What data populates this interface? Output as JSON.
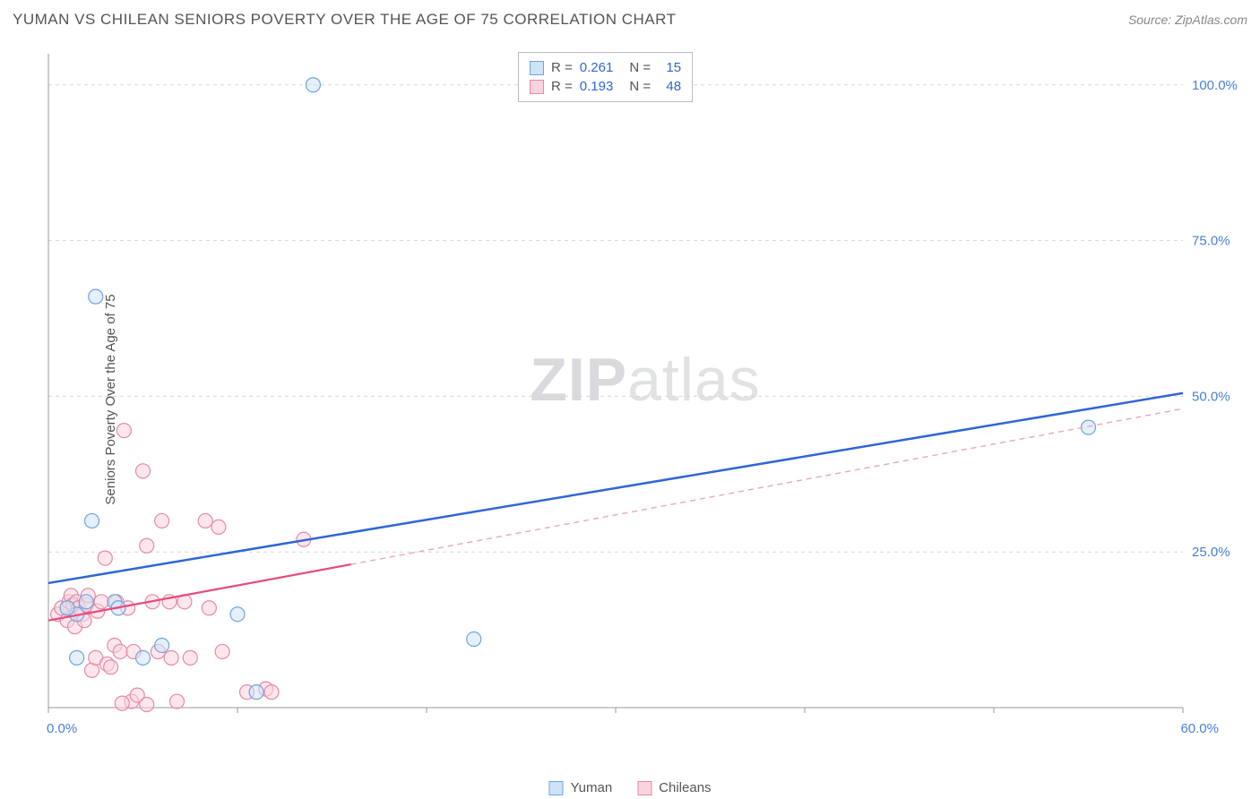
{
  "header": {
    "title": "YUMAN VS CHILEAN SENIORS POVERTY OVER THE AGE OF 75 CORRELATION CHART",
    "source_prefix": "Source: ",
    "source_name": "ZipAtlas.com"
  },
  "ylabel": "Seniors Poverty Over the Age of 75",
  "watermark": {
    "part1": "ZIP",
    "part2": "atlas"
  },
  "chart": {
    "type": "scatter",
    "xlim": [
      0,
      60
    ],
    "ylim": [
      0,
      105
    ],
    "xtick_values": [
      0,
      10,
      20,
      30,
      40,
      50,
      60
    ],
    "xtick_labels": [
      "0.0%",
      "",
      "",
      "",
      "",
      "",
      "60.0%"
    ],
    "ytick_values": [
      25,
      50,
      75,
      100
    ],
    "ytick_labels": [
      "25.0%",
      "50.0%",
      "75.0%",
      "100.0%"
    ],
    "grid_color": "#d7d7d7",
    "grid_dash": "4 4",
    "axis_color": "#999999",
    "background": "#ffffff",
    "marker_radius": 8,
    "marker_stroke_width": 1.2,
    "series": [
      {
        "name": "Yuman",
        "fill": "#cfe3f7",
        "stroke": "#6fa4dd",
        "fill_opacity": 0.55,
        "R": "0.261",
        "N": "15",
        "points": [
          [
            1.5,
            15
          ],
          [
            2.0,
            17
          ],
          [
            1.0,
            16
          ],
          [
            2.3,
            30
          ],
          [
            3.5,
            17
          ],
          [
            3.7,
            16
          ],
          [
            5.0,
            8
          ],
          [
            6.0,
            10
          ],
          [
            10.0,
            15
          ],
          [
            11.0,
            2.5
          ],
          [
            14.0,
            100
          ],
          [
            22.5,
            11
          ],
          [
            55.0,
            45
          ],
          [
            2.5,
            66
          ],
          [
            1.5,
            8
          ]
        ],
        "trend": {
          "x1": 0,
          "y1": 20,
          "x2": 60,
          "y2": 50.5,
          "color": "#2f66d6",
          "width": 2.5,
          "dash": null
        }
      },
      {
        "name": "Chileans",
        "fill": "#fbd3de",
        "stroke": "#e88aa3",
        "fill_opacity": 0.55,
        "R": "0.193",
        "N": "48",
        "points": [
          [
            0.5,
            15
          ],
          [
            0.7,
            16
          ],
          [
            1.0,
            14
          ],
          [
            1.1,
            17
          ],
          [
            1.2,
            18
          ],
          [
            1.3,
            16.5
          ],
          [
            1.4,
            13
          ],
          [
            1.5,
            17
          ],
          [
            1.6,
            16
          ],
          [
            1.8,
            15
          ],
          [
            1.9,
            14
          ],
          [
            2.0,
            16.5
          ],
          [
            2.1,
            18
          ],
          [
            2.3,
            6
          ],
          [
            2.5,
            8
          ],
          [
            2.6,
            15.5
          ],
          [
            2.8,
            17
          ],
          [
            3.0,
            24
          ],
          [
            3.1,
            7
          ],
          [
            3.3,
            6.5
          ],
          [
            3.5,
            10
          ],
          [
            3.6,
            17
          ],
          [
            3.8,
            9
          ],
          [
            4.0,
            44.5
          ],
          [
            4.2,
            16
          ],
          [
            4.4,
            1
          ],
          [
            4.5,
            9
          ],
          [
            4.7,
            2
          ],
          [
            5.0,
            38
          ],
          [
            5.2,
            26
          ],
          [
            5.5,
            17
          ],
          [
            5.8,
            9
          ],
          [
            6.0,
            30
          ],
          [
            6.4,
            17
          ],
          [
            6.5,
            8
          ],
          [
            6.8,
            1
          ],
          [
            7.2,
            17
          ],
          [
            7.5,
            8
          ],
          [
            8.3,
            30
          ],
          [
            8.5,
            16
          ],
          [
            9.0,
            29
          ],
          [
            9.2,
            9
          ],
          [
            10.5,
            2.5
          ],
          [
            11.5,
            3
          ],
          [
            11.8,
            2.5
          ],
          [
            13.5,
            27
          ],
          [
            5.2,
            0.5
          ],
          [
            3.9,
            0.7
          ]
        ],
        "trend_solid": {
          "x1": 0,
          "y1": 14,
          "x2": 16,
          "y2": 23,
          "color": "#e74a7a",
          "width": 2.2
        },
        "trend_dash": {
          "x1": 16,
          "y1": 23,
          "x2": 60,
          "y2": 48,
          "color": "#e9a7ba",
          "width": 1.4,
          "dash": "6 5"
        }
      }
    ],
    "stats_legend": {
      "R_label": "R =",
      "N_label": "N =",
      "value_color": "#2f66d6",
      "text_color": "#555555"
    },
    "bottom_legend": {
      "items": [
        {
          "label": "Yuman",
          "fill": "#cfe3f7",
          "stroke": "#6fa4dd"
        },
        {
          "label": "Chileans",
          "fill": "#fbd3de",
          "stroke": "#e88aa3"
        }
      ]
    }
  }
}
